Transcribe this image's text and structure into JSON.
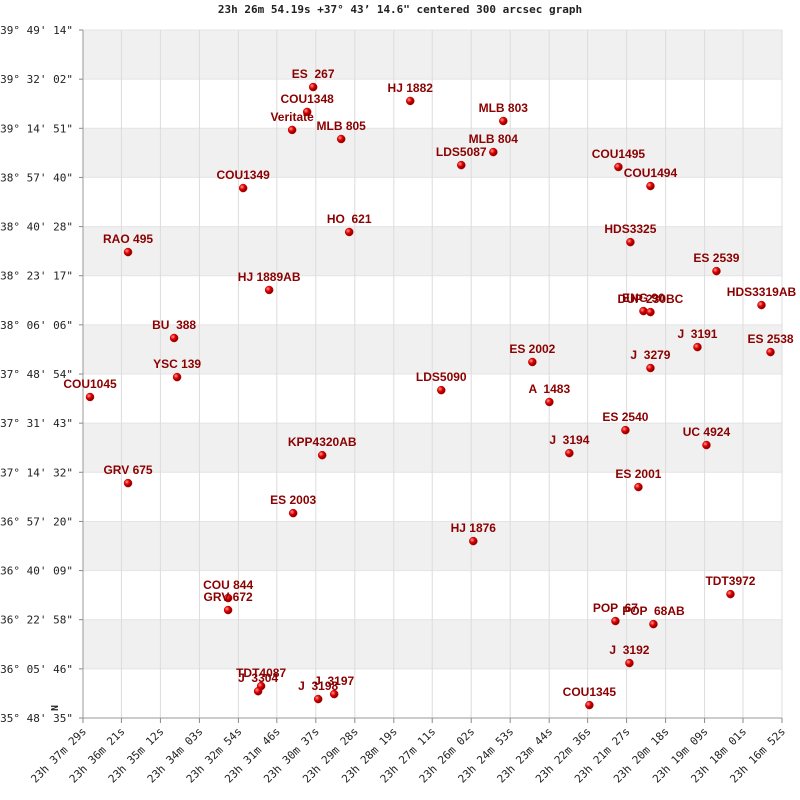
{
  "chart_data": {
    "type": "scatter",
    "title": "23h 26m 54.19s +37° 43’ 14.6\" centered 300 arcsec graph",
    "compass": "N",
    "color": "#cc0000",
    "label_color": "#8b0000",
    "grid": true,
    "xlim": [
      2249,
      1012
    ],
    "ylim": [
      35.8097,
      39.8206
    ],
    "xticks": [
      {
        "value": 2249,
        "label": "23h 37m 29s"
      },
      {
        "value": 2181,
        "label": "23h 36m 21s"
      },
      {
        "value": 2112,
        "label": "23h 35m 12s"
      },
      {
        "value": 2043,
        "label": "23h 34m 03s"
      },
      {
        "value": 1974,
        "label": "23h 32m 54s"
      },
      {
        "value": 1906,
        "label": "23h 31m 46s"
      },
      {
        "value": 1837,
        "label": "23h 30m 37s"
      },
      {
        "value": 1768,
        "label": "23h 29m 28s"
      },
      {
        "value": 1699,
        "label": "23h 28m 19s"
      },
      {
        "value": 1631,
        "label": "23h 27m 11s"
      },
      {
        "value": 1562,
        "label": "23h 26m 02s"
      },
      {
        "value": 1493,
        "label": "23h 24m 53s"
      },
      {
        "value": 1424,
        "label": "23h 23m 44s"
      },
      {
        "value": 1356,
        "label": "23h 22m 36s"
      },
      {
        "value": 1287,
        "label": "23h 21m 27s"
      },
      {
        "value": 1218,
        "label": "23h 20m 18s"
      },
      {
        "value": 1149,
        "label": "23h 19m 09s"
      },
      {
        "value": 1081,
        "label": "23h 18m 01s"
      },
      {
        "value": 1012,
        "label": "23h 16m 52s"
      }
    ],
    "yticks": [
      {
        "value": 39.8206,
        "label": "+39° 49' 14\""
      },
      {
        "value": 39.5339,
        "label": "+39° 32' 02\""
      },
      {
        "value": 39.2475,
        "label": "+39° 14' 51\""
      },
      {
        "value": 38.9611,
        "label": "+38° 57' 40\""
      },
      {
        "value": 38.6744,
        "label": "+38° 40' 28\""
      },
      {
        "value": 38.3881,
        "label": "+38° 23' 17\""
      },
      {
        "value": 38.1017,
        "label": "+38° 06' 06\""
      },
      {
        "value": 37.815,
        "label": "+37° 48' 54\""
      },
      {
        "value": 37.5286,
        "label": "+37° 31' 43\""
      },
      {
        "value": 37.2422,
        "label": "+37° 14' 32\""
      },
      {
        "value": 36.9556,
        "label": "+36° 57' 20\""
      },
      {
        "value": 36.6692,
        "label": "+36° 40' 09\""
      },
      {
        "value": 36.3828,
        "label": "+36° 22' 58\""
      },
      {
        "value": 36.0961,
        "label": "+36° 05' 46\""
      },
      {
        "value": 35.8097,
        "label": "+35° 48' 35\""
      }
    ],
    "labels": [
      "ES  267",
      "COU1348",
      "Veritate",
      "MLB 805",
      "HJ 1882",
      "MLB 803",
      "MLB 804",
      "LDS5087",
      "COU1495",
      "COU1494",
      "COU1349",
      "HO  621",
      "HDS3325",
      "RAO 495",
      "ES 2539",
      "HJ 1889AB",
      "ENG 90",
      "DUP 230BC",
      "HDS3319AB",
      "BU  388",
      "J  3191",
      "ES 2538",
      "ES 2002",
      "J  3279",
      "YSC 139",
      "LDS5090",
      "COU1045",
      "A  1483",
      "ES 2540",
      "UC 4924",
      "J  3194",
      "KPP4320AB",
      "ES 2001",
      "GRV 675",
      "ES 2003",
      "HJ 1876",
      "TDT3972",
      "COU 844",
      "GRV 672",
      "POP  67",
      "POP  68AB",
      "J  3192",
      "TDT4087",
      "J  3304",
      "J  3197",
      "J  3198",
      "COU1345"
    ],
    "x": [
      1841.7,
      1852.3,
      1878.9,
      1792.1,
      1669.9,
      1505.2,
      1522.9,
      1579.6,
      1301.5,
      1244.8,
      1965.6,
      1777.9,
      1280.3,
      2169.3,
      1128.0,
      1919.6,
      1257.2,
      1244.8,
      1048.3,
      2087.8,
      1161.6,
      1032.3,
      1453.8,
      1244.8,
      2082.5,
      1615.0,
      2236.6,
      1423.7,
      1289.1,
      1145.7,
      1388.3,
      1825.7,
      1266.1,
      2169.3,
      1877.1,
      1558.3,
      1103.2,
      1992.2,
      1992.2,
      1306.8,
      1239.5,
      1282.0,
      1933.8,
      1939.1,
      1804.5,
      1832.8,
      1352.9
    ],
    "y": [
      39.488,
      39.343,
      39.238,
      39.185,
      39.407,
      39.29,
      39.109,
      39.033,
      39.022,
      38.911,
      38.899,
      38.643,
      38.584,
      38.526,
      38.415,
      38.305,
      38.182,
      38.176,
      38.217,
      38.025,
      37.972,
      37.943,
      37.885,
      37.85,
      37.797,
      37.721,
      37.681,
      37.652,
      37.488,
      37.401,
      37.354,
      37.342,
      37.156,
      37.179,
      37.004,
      36.841,
      36.532,
      36.509,
      36.439,
      36.375,
      36.357,
      36.13,
      35.996,
      35.966,
      35.949,
      35.92,
      35.885
    ]
  }
}
